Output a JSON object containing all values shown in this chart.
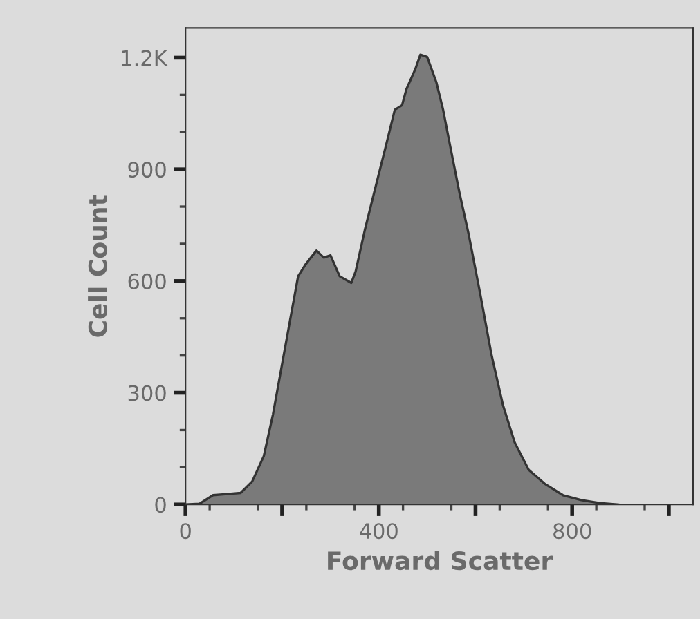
{
  "chart_data": {
    "type": "area",
    "xlabel": "Forward Scatter",
    "ylabel": "Cell Count",
    "xlim": [
      0,
      1050
    ],
    "ylim": [
      0,
      1280
    ],
    "xticks": [
      0,
      {
        "value": 200,
        "label": null
      },
      400,
      {
        "value": 600,
        "label": null
      },
      800,
      {
        "value": 1000,
        "label": null
      }
    ],
    "yticks": [
      0,
      300,
      600,
      900,
      {
        "value": 1200,
        "label": "1.2K"
      }
    ],
    "grid": false,
    "legend": false,
    "series": [
      {
        "color": "#7a7a7a",
        "x": [
          0,
          29,
          57,
          86,
          114,
          138,
          162,
          181,
          200,
          219,
          233,
          248,
          271,
          286,
          300,
          319,
          343,
          352,
          371,
          390,
          414,
          433,
          448,
          457,
          476,
          486,
          500,
          519,
          533,
          548,
          567,
          586,
          610,
          633,
          657,
          681,
          710,
          743,
          781,
          819,
          857,
          895
        ],
        "values": [
          0,
          2,
          25,
          28,
          31,
          62,
          130,
          242,
          378,
          514,
          613,
          644,
          682,
          663,
          669,
          613,
          595,
          626,
          737,
          836,
          960,
          1060,
          1072,
          1115,
          1171,
          1208,
          1202,
          1134,
          1060,
          960,
          836,
          725,
          564,
          403,
          266,
          167,
          93,
          56,
          25,
          12,
          4,
          0
        ]
      }
    ]
  }
}
